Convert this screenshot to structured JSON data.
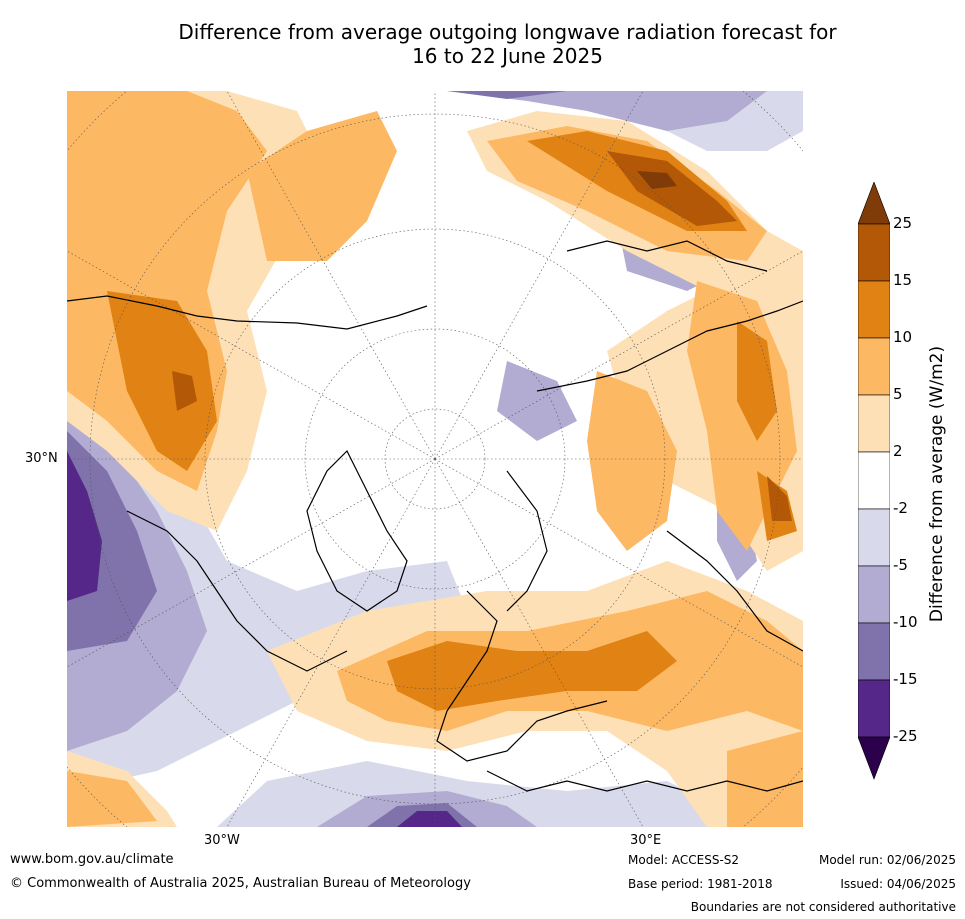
{
  "title_line1": "Difference from average outgoing longwave radiation forecast for",
  "title_line2": "16 to 22 June 2025",
  "map_labels": {
    "lon_30w": "30°W",
    "lon_30e": "30°E",
    "lat_30n": "30°N"
  },
  "colorbar": {
    "label": "Difference from average (W/m2)",
    "ticks": [
      "25",
      "15",
      "10",
      "5",
      "2",
      "-2",
      "-5",
      "-10",
      "-15",
      "-25"
    ],
    "colors": [
      "#7f3b08",
      "#b35806",
      "#e08214",
      "#fdb863",
      "#fee0b6",
      "#ffffff",
      "#d8daeb",
      "#b2abd2",
      "#8073ac",
      "#542788",
      "#2d004b"
    ]
  },
  "footer": {
    "website": "www.bom.gov.au/climate",
    "copyright": "© Commonwealth of Australia 2025, Australian Bureau of Meteorology",
    "model": "Model: ACCESS-S2",
    "base_period": "Base period: 1981-2018",
    "model_run": "Model run: 02/06/2025",
    "issued": "Issued: 04/06/2025",
    "disclaimer": "Boundaries are not considered authoritative"
  }
}
